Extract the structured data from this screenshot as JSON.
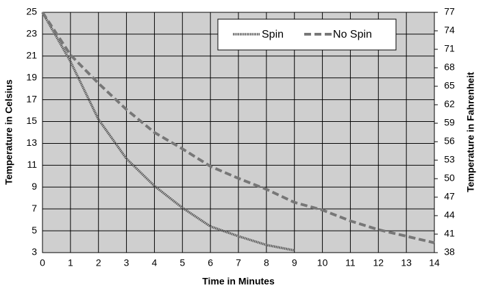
{
  "chart_data": {
    "type": "line",
    "xlabel": "Time in Minutes",
    "ylabel": "Temperature in Celsius",
    "y2label": "Temperature in Fahrenheit",
    "x": [
      0,
      1,
      2,
      3,
      4,
      5,
      6,
      7,
      8,
      9,
      10,
      11,
      12,
      13,
      14
    ],
    "series": [
      {
        "name": "Spin",
        "color": "#555555",
        "values": [
          25,
          20.5,
          15.2,
          11.6,
          9.1,
          7.1,
          5.4,
          4.5,
          3.7,
          3.2,
          null,
          null,
          null,
          null,
          null
        ]
      },
      {
        "name": "No Spin",
        "color": "#777777",
        "values": [
          25,
          21.1,
          18.5,
          16.1,
          14.0,
          12.5,
          10.9,
          9.8,
          8.8,
          7.6,
          6.9,
          5.9,
          5.1,
          4.5,
          3.9
        ]
      }
    ],
    "xlim": [
      0,
      14
    ],
    "xticks": [
      0,
      1,
      2,
      3,
      4,
      5,
      6,
      7,
      8,
      9,
      10,
      11,
      12,
      13,
      14
    ],
    "ylim": [
      3,
      25
    ],
    "yticks": [
      3,
      5,
      7,
      9,
      11,
      13,
      15,
      17,
      19,
      21,
      23,
      25
    ],
    "y2lim": [
      38,
      77
    ],
    "y2ticks": [
      38,
      41,
      44,
      47,
      50,
      53,
      56,
      59,
      62,
      65,
      68,
      71,
      74,
      77
    ],
    "grid": true,
    "legend": "upper right"
  }
}
